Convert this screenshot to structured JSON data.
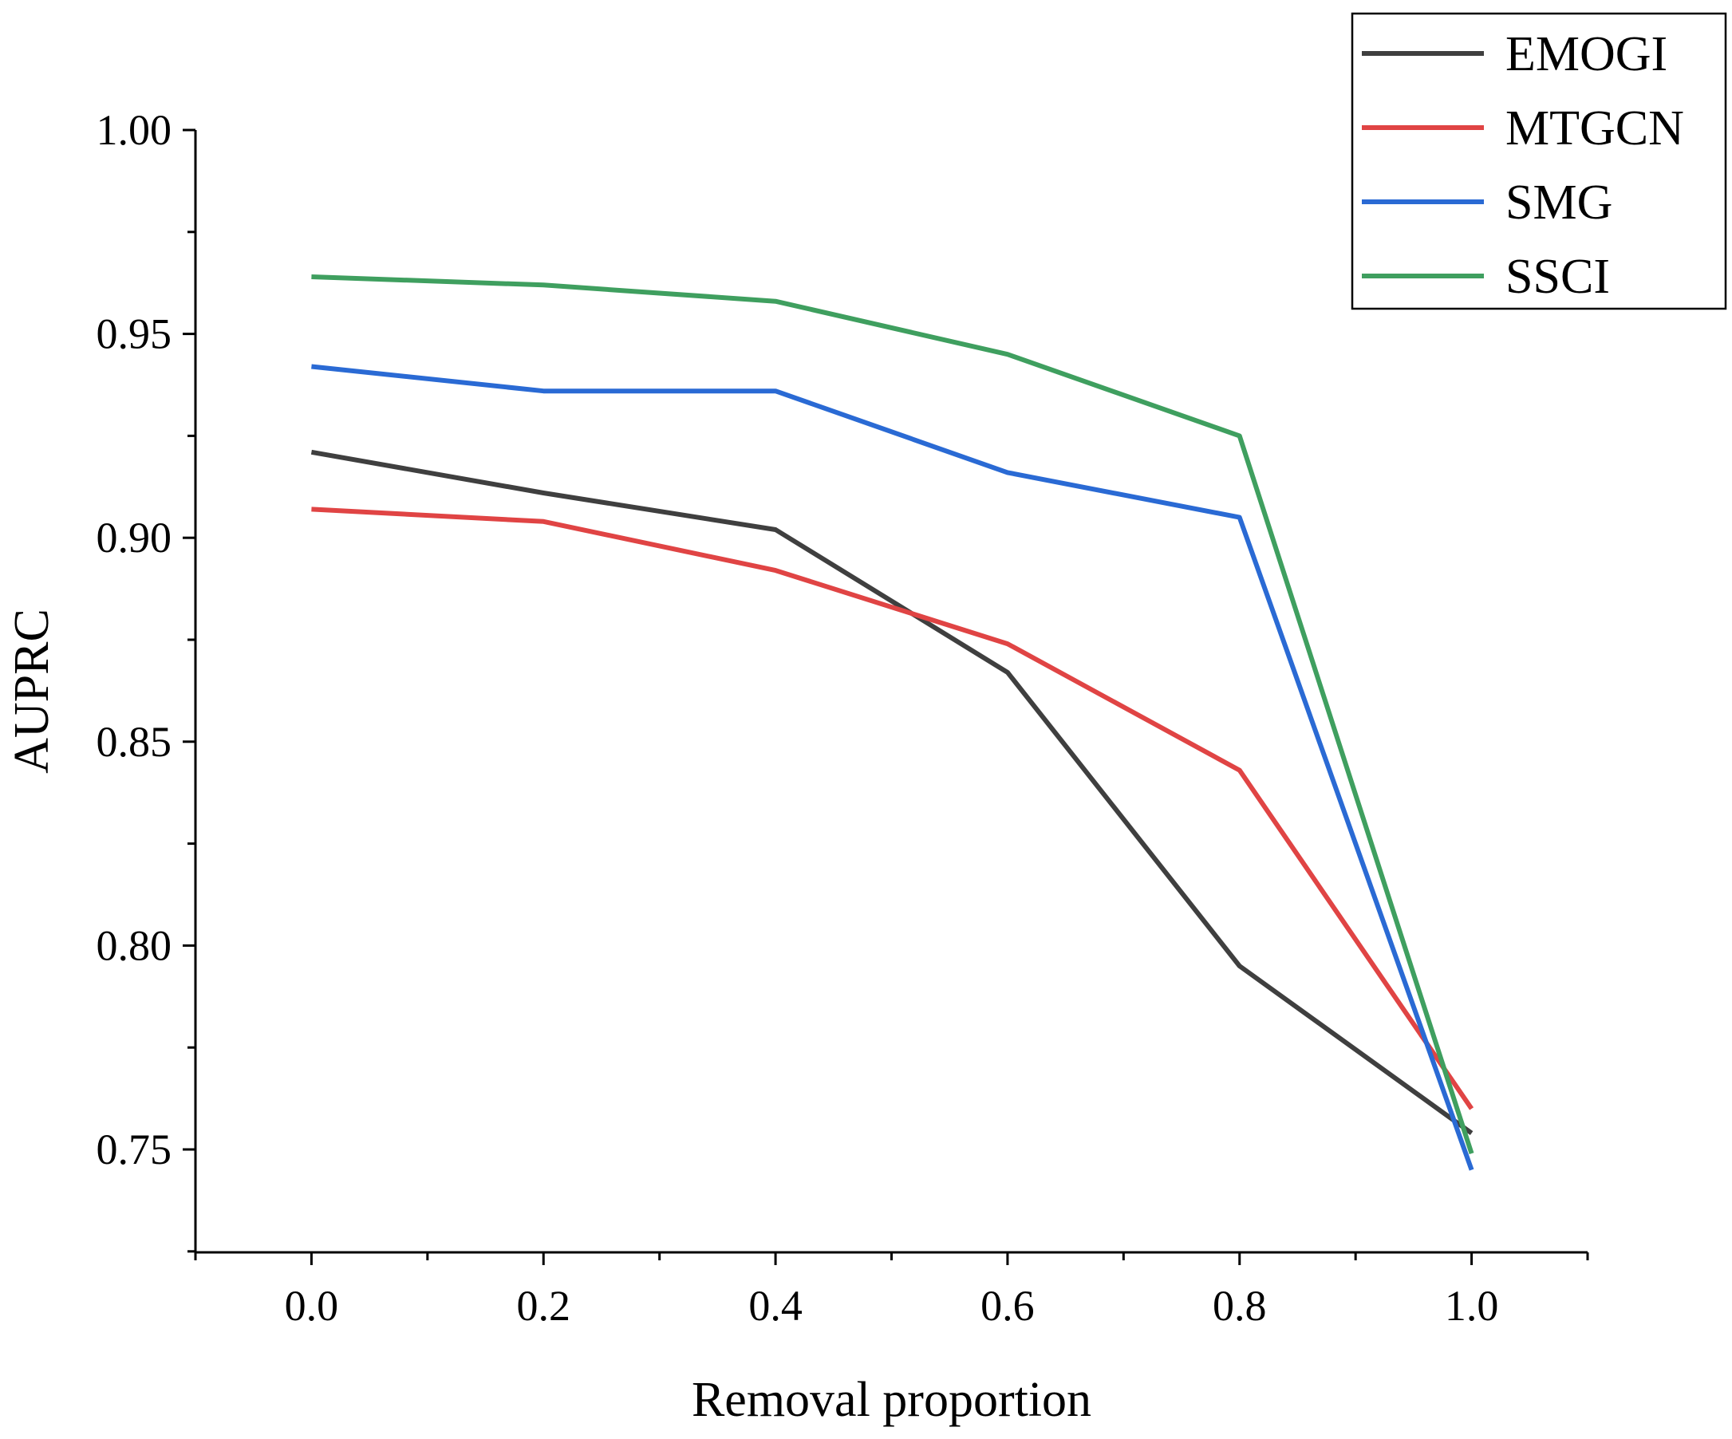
{
  "chart_data": {
    "type": "line",
    "title": "",
    "xlabel": "Removal proportion",
    "ylabel": "AUPRC",
    "x": [
      0.0,
      0.2,
      0.4,
      0.6,
      0.8,
      1.0
    ],
    "x_tick_labels": [
      "0.0",
      "0.2",
      "0.4",
      "0.6",
      "0.8",
      "1.0"
    ],
    "y_tick_values": [
      0.75,
      0.8,
      0.85,
      0.9,
      0.95,
      1.0
    ],
    "y_tick_labels": [
      "0.75",
      "0.80",
      "0.85",
      "0.90",
      "0.95",
      "1.00"
    ],
    "xlim": [
      -0.1,
      1.1
    ],
    "ylim": [
      0.725,
      1.0
    ],
    "grid": false,
    "legend_position": "top-right",
    "series": [
      {
        "name": "EMOGI",
        "color": "#3f3f3f",
        "values": [
          0.921,
          0.911,
          0.902,
          0.867,
          0.795,
          0.754
        ]
      },
      {
        "name": "MTGCN",
        "color": "#e04444",
        "values": [
          0.907,
          0.904,
          0.892,
          0.874,
          0.843,
          0.76
        ]
      },
      {
        "name": "SMG",
        "color": "#2a6ad4",
        "values": [
          0.942,
          0.936,
          0.936,
          0.916,
          0.905,
          0.745
        ]
      },
      {
        "name": "SSCI",
        "color": "#3f9f5f",
        "values": [
          0.964,
          0.962,
          0.958,
          0.945,
          0.925,
          0.749
        ]
      }
    ]
  }
}
